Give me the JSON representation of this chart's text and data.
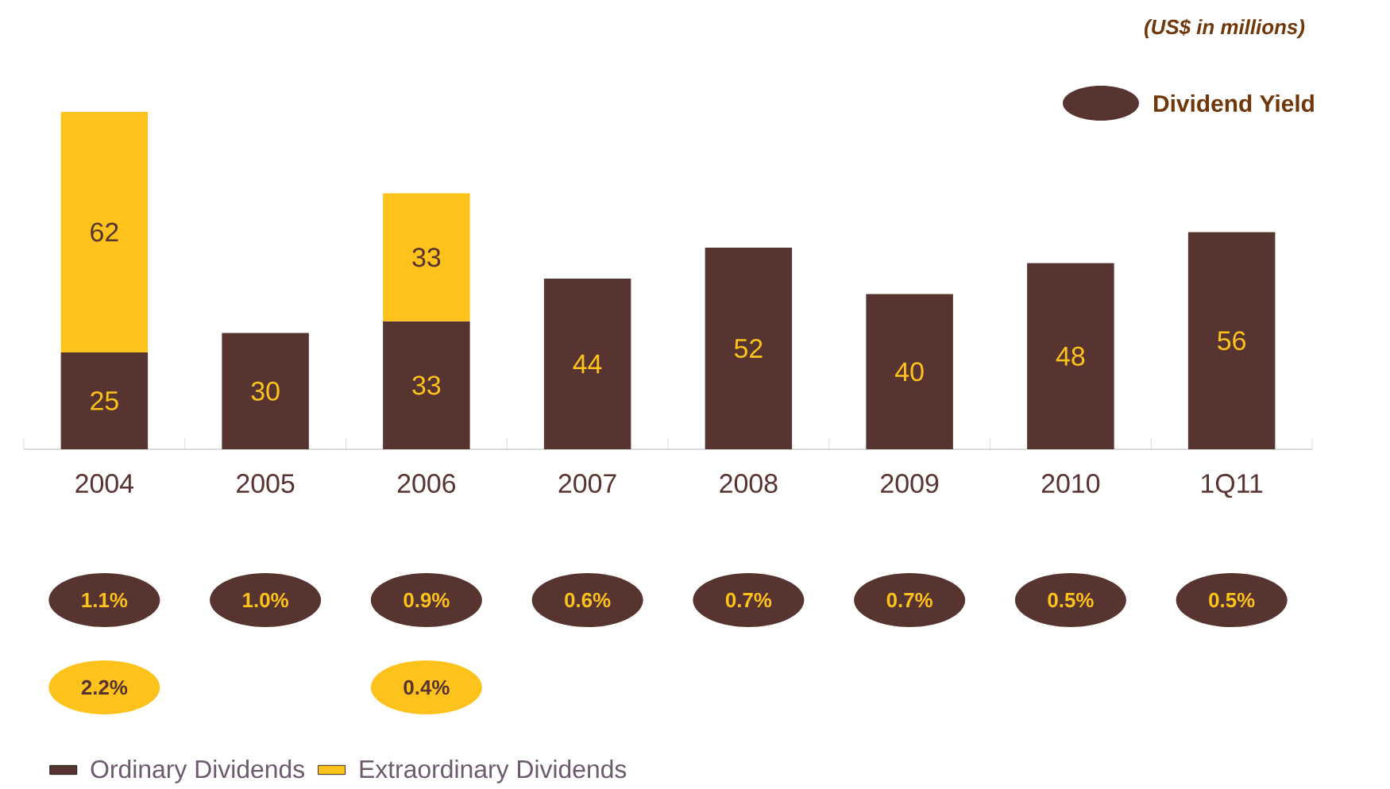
{
  "chart_data": {
    "type": "bar",
    "stacked": true,
    "data_labels": true,
    "legend": "bottom left",
    "categories": [
      "2004",
      "2005",
      "2006",
      "2007",
      "2008",
      "2009",
      "2010",
      "1Q11"
    ],
    "series": [
      {
        "name": "Ordinary Dividends",
        "color": "#573430",
        "values": [
          25,
          30,
          33,
          44,
          52,
          40,
          48,
          56
        ]
      },
      {
        "name": "Extraordinary Dividends",
        "color": "#fdc31c",
        "values": [
          62,
          null,
          33,
          null,
          null,
          null,
          null,
          null
        ]
      }
    ],
    "annotations": [
      "(US$ in millions)",
      "Dividend Yield",
      "1.1%",
      "1.0%",
      "0.9%",
      "0.6%",
      "0.7%",
      "0.7%",
      "0.5%",
      "0.5%",
      "2.2%",
      "0.4%"
    ]
  }
}
